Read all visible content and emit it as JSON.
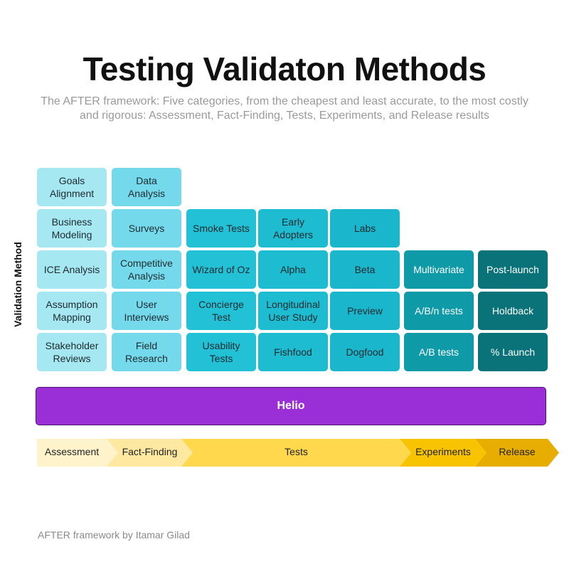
{
  "header": {
    "title": "Testing Validaton Methods",
    "subtitle": "The AFTER framework: Five categories, from the cheapest and least accurate, to the most costly and rigorous: Assessment, Fact-Finding, Tests, Experiments, and Release results"
  },
  "axis_label": "Validation Method",
  "columns": [
    [
      "Goals Alignment",
      "Business Modeling",
      "ICE Analysis",
      "Assumption Mapping",
      "Stakeholder Reviews"
    ],
    [
      "Data Analysis",
      "Surveys",
      "Competitive Analysis",
      "User Interviews",
      "Field Research"
    ],
    [
      "Smoke Tests",
      "Wizard of Oz",
      "Concierge Test",
      "Usability Tests"
    ],
    [
      "Early Adopters",
      "Alpha",
      "Longitudinal User Study",
      "Fishfood"
    ],
    [
      "Labs",
      "Beta",
      "Preview",
      "Dogfood"
    ],
    [
      "Multivariate",
      "A/B/n tests",
      "A/B tests"
    ],
    [
      "Post-launch",
      "Holdback",
      "% Launch"
    ]
  ],
  "bar": "Helio",
  "categories": [
    "Assessment",
    "Fact-Finding",
    "Tests",
    "Experiments",
    "Release"
  ],
  "footer": "AFTER framework by Itamar Gilad"
}
